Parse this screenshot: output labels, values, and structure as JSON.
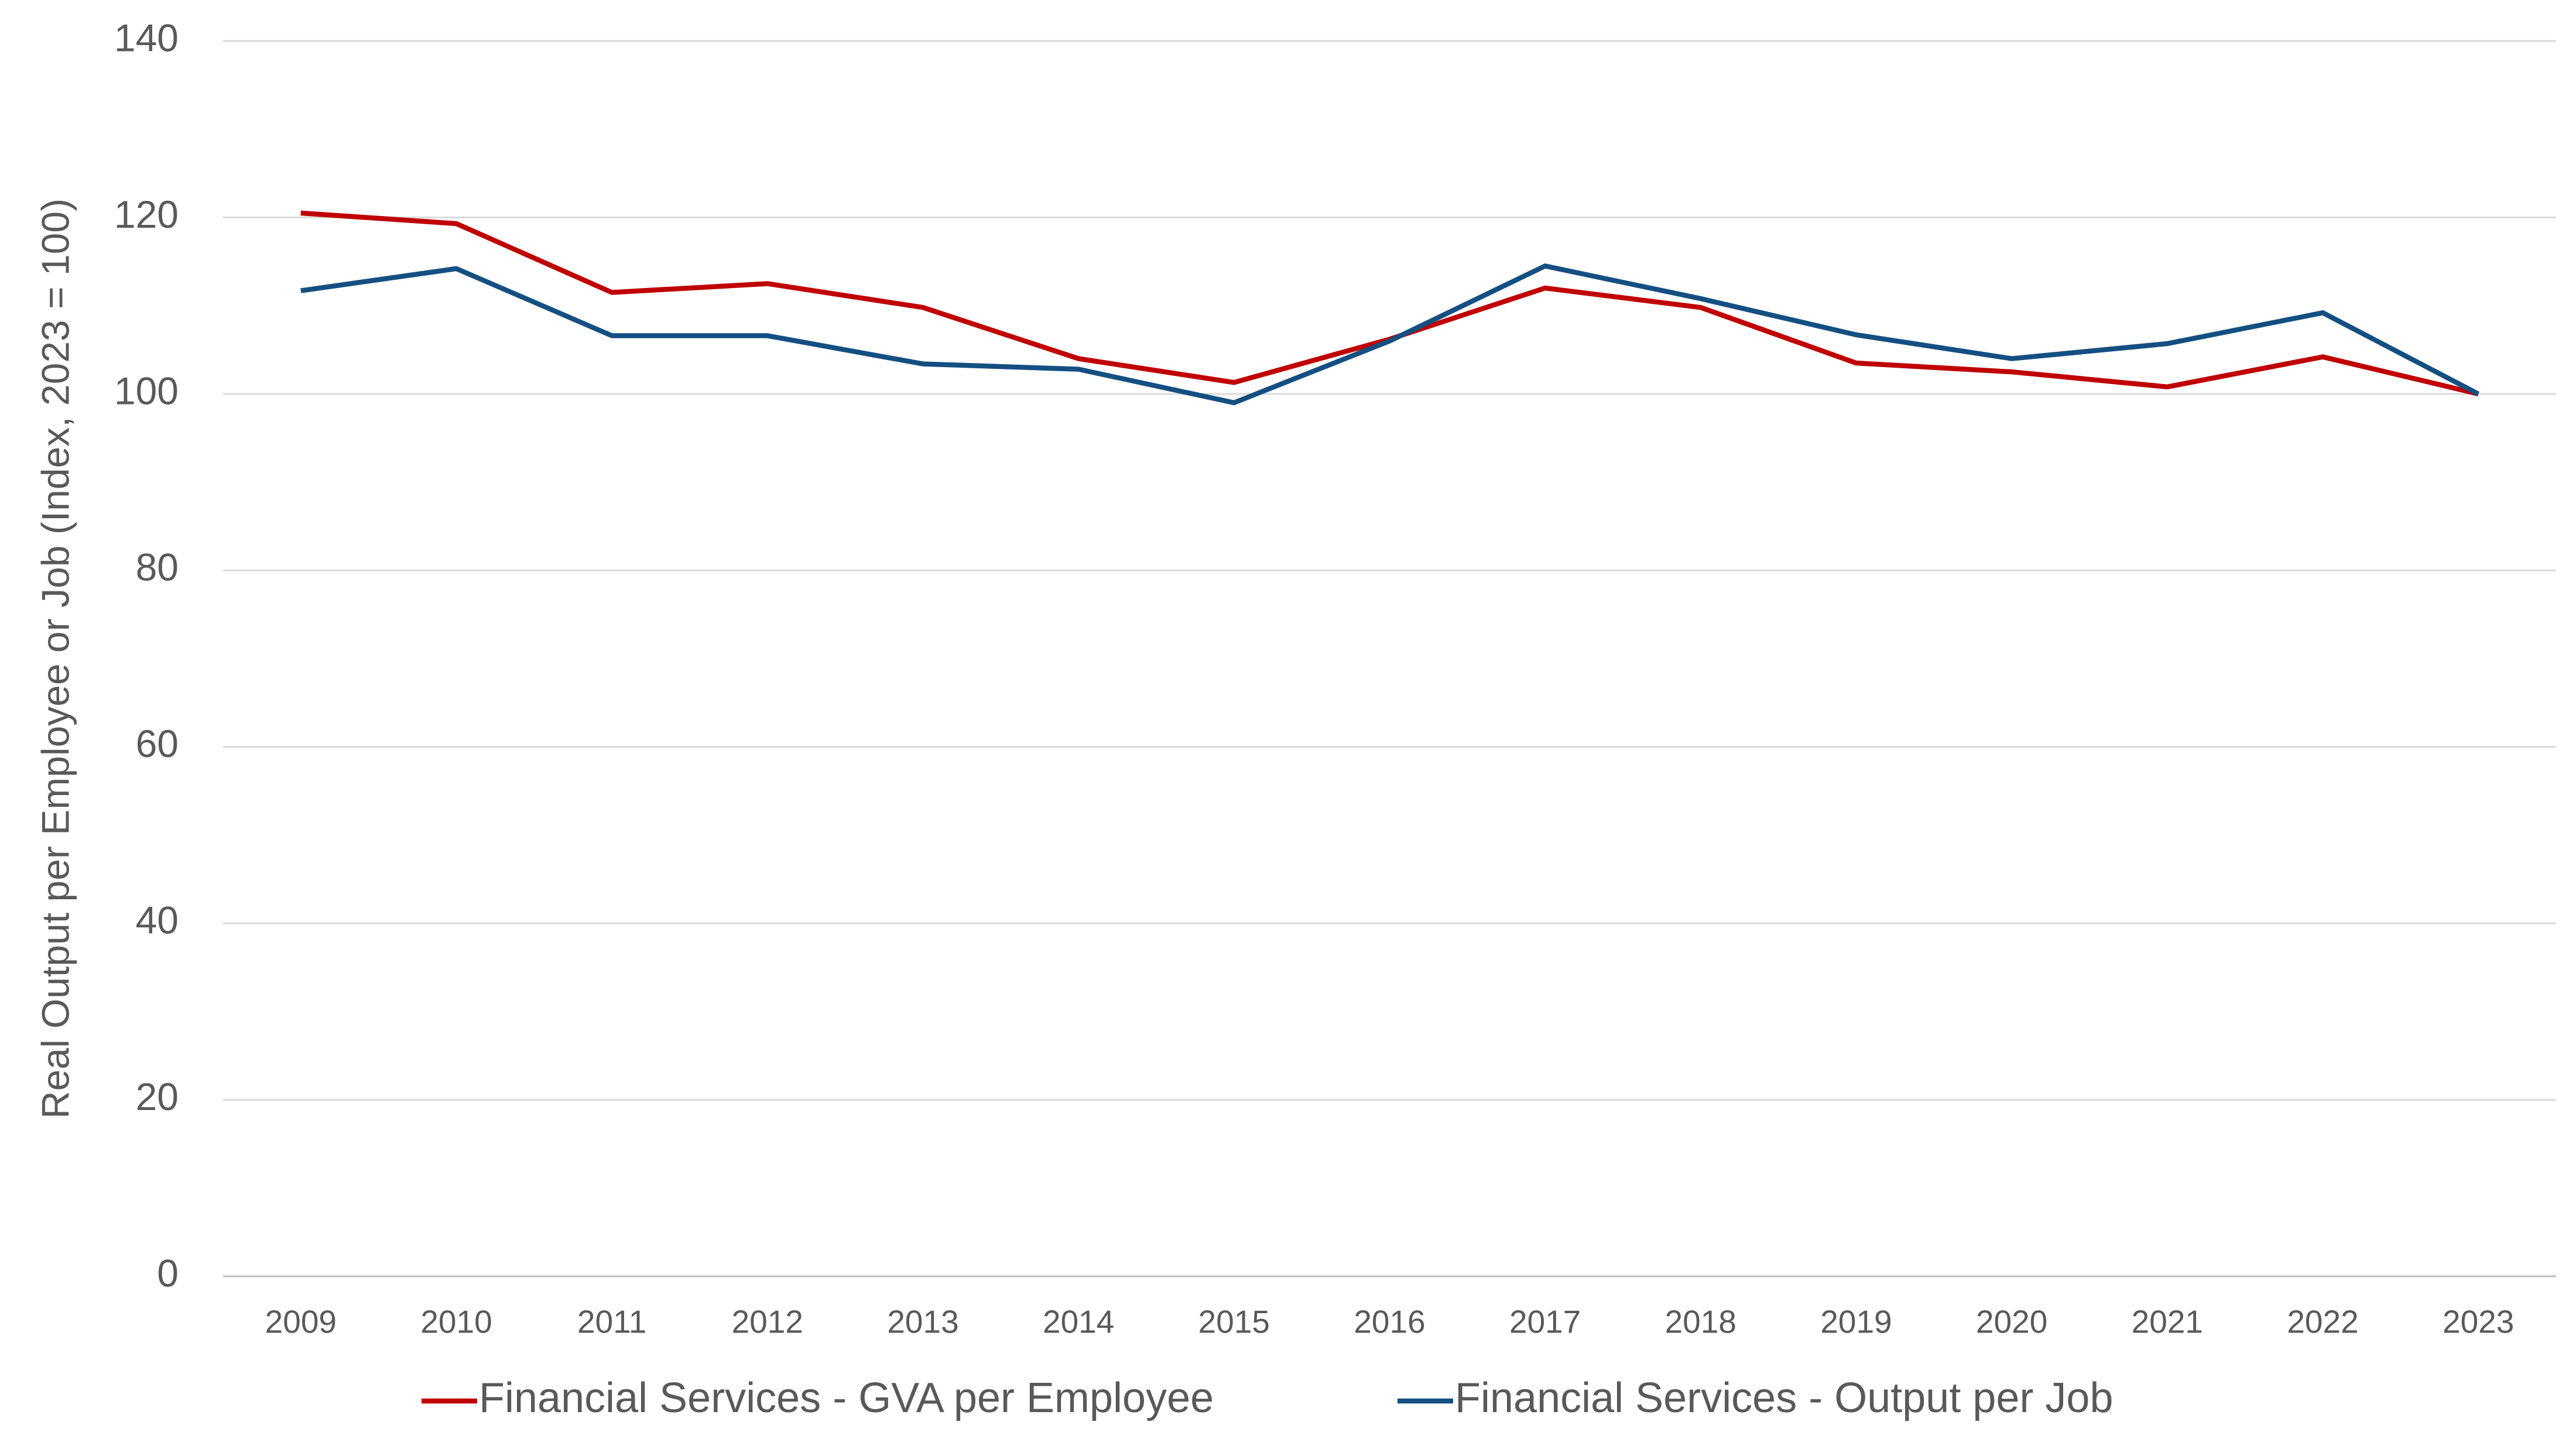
{
  "chart_data": {
    "type": "line",
    "y_label": "Real Output per Employee or Job (Index, 2023 = 100)",
    "categories": [
      "2009",
      "2010",
      "2011",
      "2012",
      "2013",
      "2014",
      "2015",
      "2016",
      "2017",
      "2018",
      "2019",
      "2020",
      "2021",
      "2022",
      "2023"
    ],
    "series": [
      {
        "name": "Financial Services - GVA per Employee",
        "color": "#c00000",
        "values": [
          120.5,
          119.3,
          111.5,
          112.5,
          109.8,
          104,
          101.3,
          106.2,
          112,
          109.8,
          103.5,
          102.5,
          100.8,
          104.2,
          100
        ]
      },
      {
        "name": "Financial Services - Output per Job",
        "color": "#144f82",
        "values": [
          111.7,
          114.2,
          106.6,
          106.6,
          103.4,
          102.8,
          99,
          106,
          114.5,
          110.8,
          106.7,
          104,
          105.7,
          109.2,
          100
        ]
      }
    ],
    "ylim": [
      0,
      140
    ],
    "yticks": [
      0,
      20,
      40,
      60,
      80,
      100,
      120,
      140
    ],
    "grid": true,
    "legend": "bottom"
  }
}
